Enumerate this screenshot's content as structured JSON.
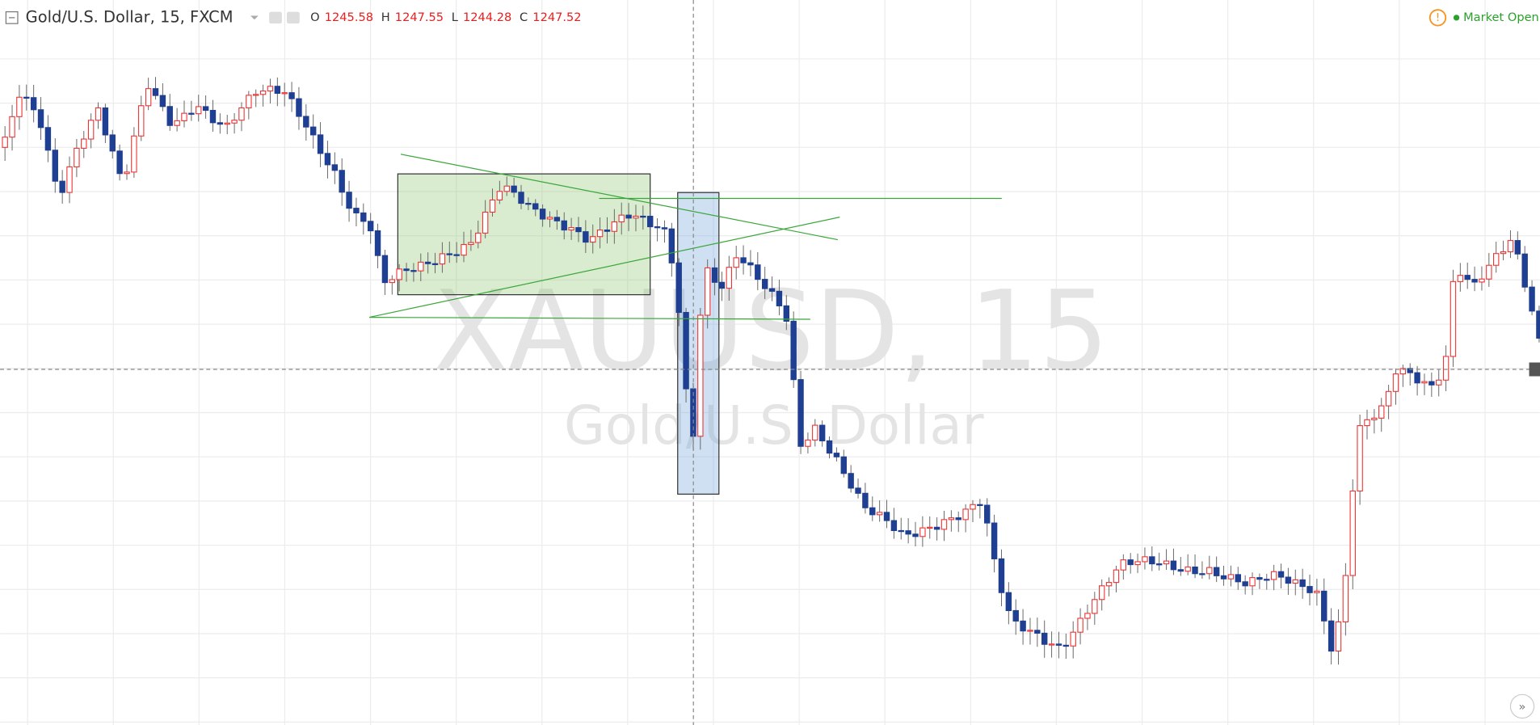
{
  "header": {
    "symbol": "Gold/U.S. Dollar, 15, FXCM",
    "ohlc": [
      {
        "label": "O",
        "value": "1245.58"
      },
      {
        "label": "H",
        "value": "1247.55"
      },
      {
        "label": "L",
        "value": "1244.28"
      },
      {
        "label": "C",
        "value": "1247.52"
      }
    ]
  },
  "status": "Market Open",
  "watermark": {
    "symbol": "XAUUSD, 15",
    "name": "Gold/U.S. Dollar"
  }
}
